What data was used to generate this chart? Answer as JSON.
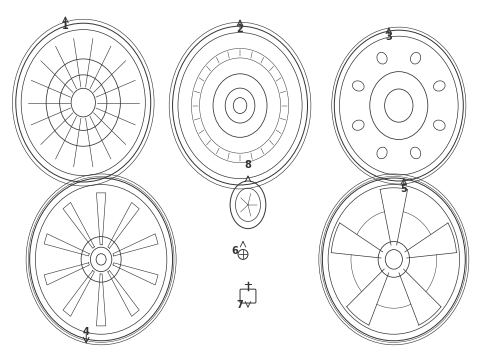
{
  "title": "",
  "background_color": "#ffffff",
  "line_color": "#333333",
  "parts": [
    {
      "id": 1,
      "label": "1",
      "row": 0,
      "col": 0,
      "type": "wheel_spoked"
    },
    {
      "id": 2,
      "label": "2",
      "row": 0,
      "col": 1,
      "type": "wheel_plain"
    },
    {
      "id": 3,
      "label": "3",
      "row": 0,
      "col": 2,
      "type": "wheel_holes"
    },
    {
      "id": 4,
      "label": "4",
      "row": 1,
      "col": 0,
      "type": "wheel_fan"
    },
    {
      "id": 5,
      "label": "5",
      "row": 1,
      "col": 2,
      "type": "wheel_star"
    },
    {
      "id": 6,
      "label": "6",
      "row": 1,
      "col": 1,
      "type": "bolt_label"
    },
    {
      "id": 7,
      "label": "7",
      "row": 1,
      "col": 1,
      "type": "valve_stem"
    },
    {
      "id": 8,
      "label": "8",
      "row": 1,
      "col": 1,
      "type": "cap_small"
    }
  ],
  "figsize": [
    4.9,
    3.6
  ],
  "dpi": 100
}
